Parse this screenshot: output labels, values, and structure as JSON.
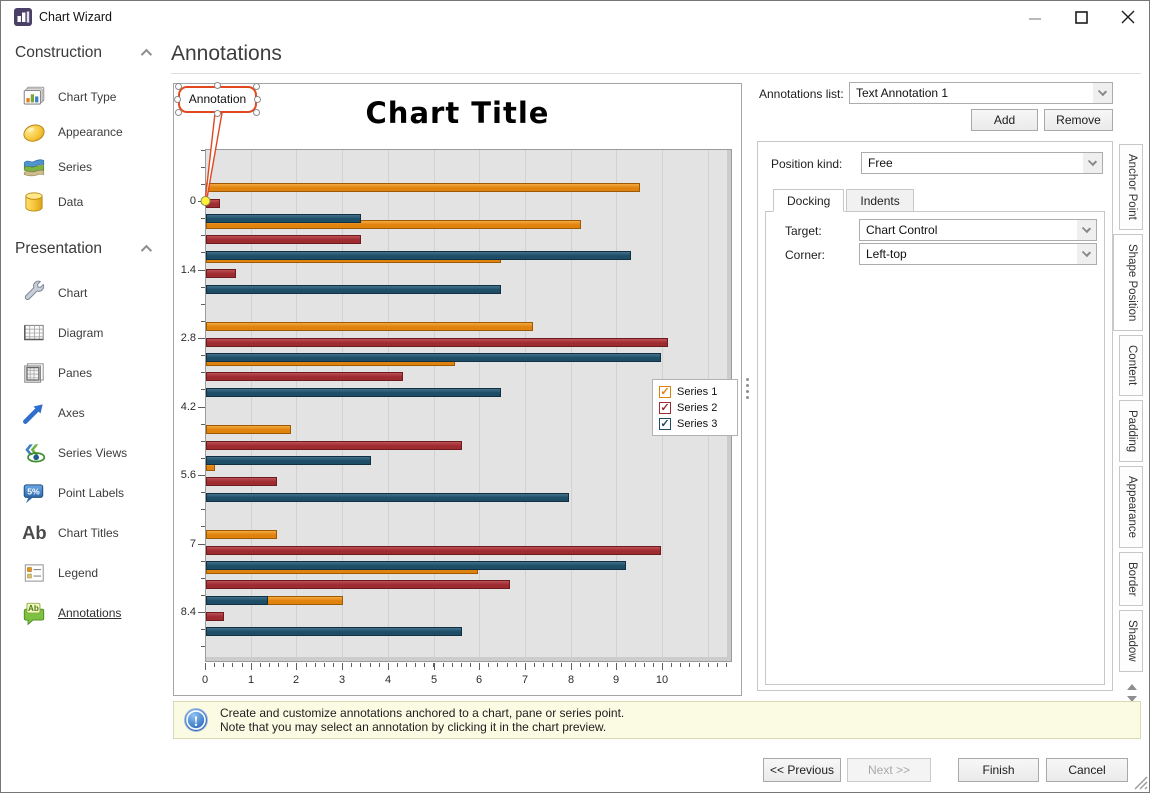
{
  "window": {
    "title": "Chart Wizard"
  },
  "header": {
    "title": "Annotations"
  },
  "sidebar": {
    "sections": [
      {
        "label": "Construction",
        "items": [
          {
            "label": "Chart Type",
            "icon": "chart-type-icon"
          },
          {
            "label": "Appearance",
            "icon": "appearance-icon"
          },
          {
            "label": "Series",
            "icon": "series-icon"
          },
          {
            "label": "Data",
            "icon": "data-icon"
          }
        ]
      },
      {
        "label": "Presentation",
        "items": [
          {
            "label": "Chart",
            "icon": "chart-icon"
          },
          {
            "label": "Diagram",
            "icon": "diagram-icon"
          },
          {
            "label": "Panes",
            "icon": "panes-icon"
          },
          {
            "label": "Axes",
            "icon": "axes-icon"
          },
          {
            "label": "Series Views",
            "icon": "series-views-icon"
          },
          {
            "label": "Point Labels",
            "icon": "point-labels-icon"
          },
          {
            "label": "Chart Titles",
            "icon": "chart-titles-icon"
          },
          {
            "label": "Legend",
            "icon": "legend-icon"
          },
          {
            "label": "Annotations",
            "icon": "annotations-icon",
            "selected": true
          }
        ]
      }
    ]
  },
  "annotation": {
    "label": "Annotation"
  },
  "chart_data": {
    "type": "bar",
    "orientation": "horizontal",
    "title": "Chart Title",
    "arguments": [
      0,
      0.75,
      1.45,
      2.85,
      3.55,
      4.95,
      5.7,
      7.1,
      7.8,
      8.45
    ],
    "series": [
      {
        "name": "Series 1",
        "color": "#E0820E",
        "values": [
          9.5,
          8.2,
          6.45,
          7.15,
          5.45,
          1.85,
          0.2,
          1.55,
          5.95,
          3.0
        ]
      },
      {
        "name": "Series 2",
        "color": "#9E2B30",
        "values": [
          0.3,
          3.4,
          0.65,
          10.1,
          4.3,
          5.6,
          1.55,
          9.95,
          6.65,
          0.4
        ]
      },
      {
        "name": "Series 3",
        "color": "#1E4D66",
        "values": [
          3.4,
          9.3,
          6.45,
          9.95,
          6.45,
          3.6,
          7.95,
          9.2,
          1.35,
          5.6
        ]
      }
    ],
    "x_axis": {
      "tick_labels": [
        "0",
        "1",
        "2",
        "3",
        "4",
        "5",
        "6",
        "7",
        "8",
        "9",
        "10"
      ],
      "visible_max": 11.5
    },
    "y_axis": {
      "tick_labels": [
        "0",
        "1.4",
        "2.8",
        "4.2",
        "5.6",
        "7",
        "8.4"
      ],
      "inverted": true
    },
    "legend": {
      "position": "right-middle",
      "checkboxes_checked": true,
      "items": [
        "Series 1",
        "Series 2",
        "Series 3"
      ]
    },
    "annotation_anchor": {
      "y_value": 0
    }
  },
  "panel": {
    "annotations_list_label": "Annotations list:",
    "annotations_list_value": "Text Annotation 1",
    "add_label": "Add",
    "remove_label": "Remove",
    "position_kind_label": "Position kind:",
    "position_kind_value": "Free",
    "tabs": [
      "Docking",
      "Indents"
    ],
    "active_tab": "Docking",
    "target_label": "Target:",
    "target_value": "Chart Control",
    "corner_label": "Corner:",
    "corner_value": "Left-top",
    "side_tabs": [
      "Anchor Point",
      "Shape Position",
      "Content",
      "Padding",
      "Appearance",
      "Border",
      "Shadow"
    ],
    "active_side_tab": "Shape Position"
  },
  "info_bar": {
    "line1": "Create and customize annotations anchored to a chart, pane or series point.",
    "line2": "Note that you may select an annotation by clicking it in the chart preview."
  },
  "footer": {
    "buttons": [
      {
        "name": "previous-button",
        "label": "<< Previous",
        "enabled": true
      },
      {
        "name": "next-button",
        "label": "Next >>",
        "enabled": false
      },
      {
        "name": "finish-button",
        "label": "Finish",
        "enabled": true
      },
      {
        "name": "cancel-button",
        "label": "Cancel",
        "enabled": true
      }
    ]
  }
}
